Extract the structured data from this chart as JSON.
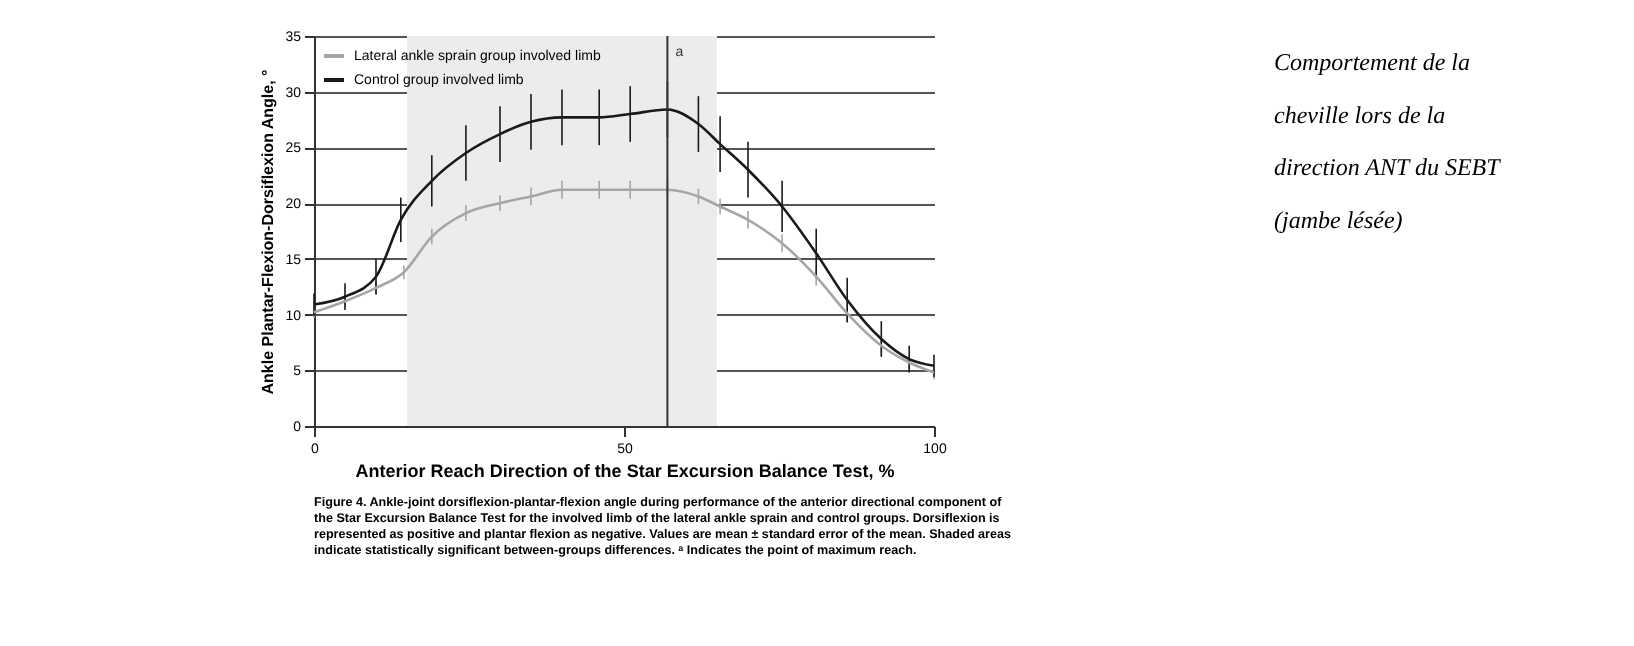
{
  "chart_data": {
    "type": "line",
    "xlabel": "Anterior Reach Direction of the Star Excursion Balance Test, %",
    "ylabel": "Ankle Plantar-Flexion-Dorsiflexion Angle, °",
    "series": [
      {
        "name": "Lateral ankle sprain group involved limb",
        "color": "#a6a6a6",
        "x": [
          0,
          5,
          10,
          14.5,
          19,
          24.5,
          30,
          35,
          40,
          46,
          51,
          57,
          62,
          65.5,
          70,
          75.5,
          81,
          86,
          91.5,
          96,
          100
        ],
        "values": [
          10.2,
          11.2,
          12.4,
          13.8,
          17,
          19.1,
          20,
          20.6,
          21.2,
          21.2,
          21.2,
          21.2,
          20.6,
          19.7,
          18.5,
          16.4,
          13.4,
          10.1,
          7.2,
          5.7,
          4.8
        ],
        "errors": [
          0.5,
          0.5,
          0.6,
          0.6,
          0.7,
          0.7,
          0.7,
          0.8,
          0.8,
          0.8,
          0.8,
          0.7,
          0.7,
          0.7,
          0.8,
          0.8,
          0.8,
          0.8,
          0.7,
          0.6,
          0.6
        ]
      },
      {
        "name": "Control group involved limb",
        "color": "#1a1a1a",
        "x": [
          0,
          5,
          10,
          14,
          19,
          24.5,
          30,
          35,
          40,
          46,
          51,
          57,
          62,
          65.5,
          70,
          75.5,
          81,
          86,
          91.5,
          96,
          100
        ],
        "values": [
          10.9,
          11.6,
          13.4,
          18.5,
          22,
          24.5,
          26.2,
          27.3,
          27.7,
          27.7,
          28,
          28.4,
          27.1,
          25.3,
          23,
          19.7,
          15.5,
          11.3,
          7.8,
          6,
          5.4
        ],
        "errors": [
          1,
          1.2,
          1.6,
          2,
          2.3,
          2.5,
          2.5,
          2.5,
          2.5,
          2.5,
          2.5,
          2.5,
          2.5,
          2.5,
          2.5,
          2.3,
          2.2,
          2,
          1.6,
          1.2,
          1
        ]
      }
    ],
    "xlim": [
      0,
      100
    ],
    "xticks": [
      0,
      50,
      100
    ],
    "ylim": [
      0,
      35
    ],
    "yticks": [
      0,
      5,
      10,
      15,
      20,
      25,
      30,
      35
    ],
    "grid": "y",
    "legend": "top left",
    "marker": "none",
    "line_style": "solid",
    "bands": [
      {
        "axis": "x",
        "from": 15,
        "to": 65,
        "color": "#ececec"
      }
    ],
    "ref_lines": [
      {
        "axis": "x",
        "value": 57,
        "label": "a",
        "color": "#333333"
      }
    ],
    "annotations": [
      "Figure 4. Ankle-joint dorsiflexion-plantar-flexion angle during performance of the anterior directional component of the Star Excursion Balance Test for the involved limb of the lateral ankle sprain and control groups. Dorsiflexion is represented as positive and plantar flexion as negative. Values are mean ± standard error of the mean. Shaded areas indicate statistically significant between-groups differences. ᵃ Indicates the point of maximum reach.",
      "Comportement de la cheville lors de la direction ANT du SEBT (jambe lésée)"
    ]
  }
}
